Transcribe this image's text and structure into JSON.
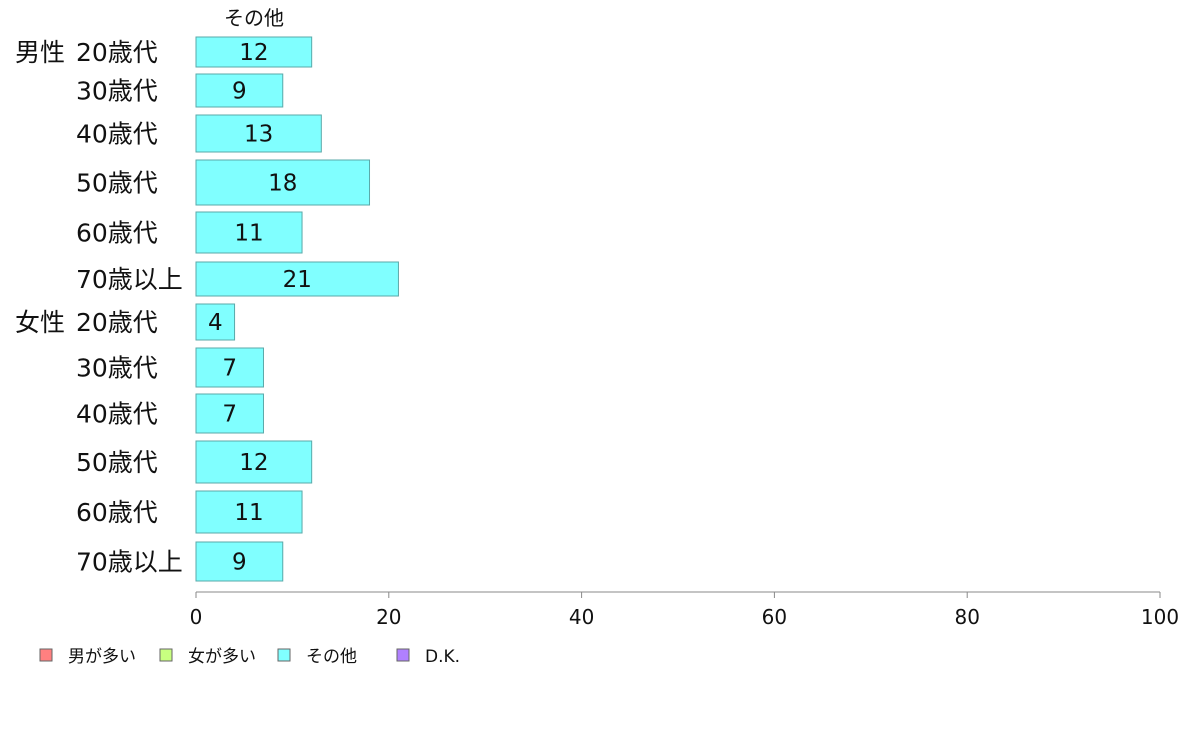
{
  "chart_data": {
    "type": "bar",
    "orientation": "horizontal",
    "series_header": "その他",
    "groups": [
      {
        "label": "男性",
        "rows": [
          {
            "label": "20歳代",
            "value": 12
          },
          {
            "label": "30歳代",
            "value": 9
          },
          {
            "label": "40歳代",
            "value": 13
          },
          {
            "label": "50歳代",
            "value": 18
          },
          {
            "label": "60歳代",
            "value": 11
          },
          {
            "label": "70歳以上",
            "value": 21
          }
        ]
      },
      {
        "label": "女性",
        "rows": [
          {
            "label": "20歳代",
            "value": 4
          },
          {
            "label": "30歳代",
            "value": 7
          },
          {
            "label": "40歳代",
            "value": 7
          },
          {
            "label": "50歳代",
            "value": 12
          },
          {
            "label": "60歳代",
            "value": 11
          },
          {
            "label": "70歳以上",
            "value": 9
          }
        ]
      }
    ],
    "xlim": [
      0,
      100
    ],
    "xticks": [
      0,
      20,
      40,
      60,
      80,
      100
    ],
    "bar_color": "#80ffff",
    "bar_stroke": "#5aa8a8",
    "legend": {
      "placement": "bottom-left",
      "items": [
        {
          "label": "男が多い",
          "color": "#ff8080"
        },
        {
          "label": "女が多い",
          "color": "#c8ff80"
        },
        {
          "label": "その他",
          "color": "#80ffff"
        },
        {
          "label": "D.K.",
          "color": "#b080ff"
        }
      ]
    }
  }
}
